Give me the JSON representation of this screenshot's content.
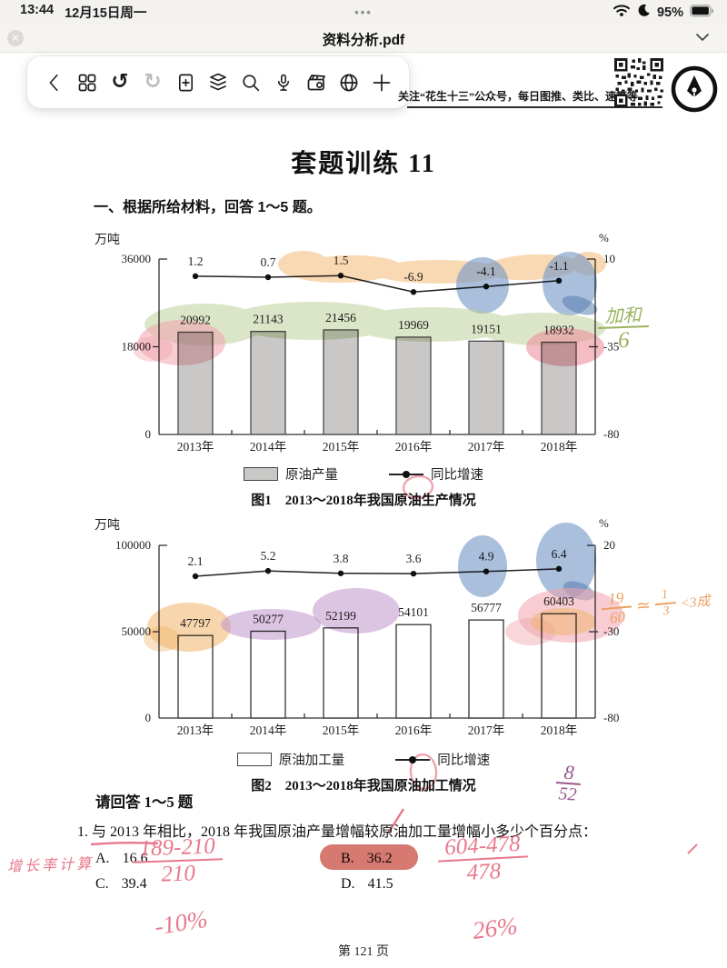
{
  "colors": {
    "highlight_orange": "#f2b46a",
    "highlight_green": "#b8cc92",
    "highlight_blue": "#6f94c4",
    "highlight_blue_dark": "#5076ab",
    "highlight_pink": "#f0a3ad",
    "highlight_pink_strong": "#ec8f9b",
    "highlight_purple": "#bf94cc",
    "answer_highlight": "#cf6157",
    "pen_pink": "#e8798c",
    "pen_orange": "#eda05f",
    "pen_green": "#9ab35e",
    "pen_purple": "#96588f"
  },
  "status_bar": {
    "time": "13:44",
    "date": "12月15日周一",
    "more": "•••",
    "battery_percent": "95%"
  },
  "title_bar": {
    "title": "资料分析.pdf"
  },
  "toolbar": {
    "promo": "关注“花生十三”公众号，每日图推、类比、速算等"
  },
  "document": {
    "heading": "套题训练 11",
    "intro": "一、根据所给材料，回答 1～5 题。",
    "ask": "请回答 1～5 题",
    "question": "1. 与 2013 年相比，2018 年我国原油产量增幅较原油加工量增幅小多少个百分点：",
    "options": [
      {
        "key": "A.",
        "value": "16.6"
      },
      {
        "key": "B.",
        "value": "36.2"
      },
      {
        "key": "C.",
        "value": "39.4"
      },
      {
        "key": "D.",
        "value": "41.5"
      }
    ],
    "answer_highlighted": "B",
    "footer": "第 121 页"
  },
  "chart_data": [
    {
      "type": "bar+line",
      "title": "图1　2013～2018年我国原油生产情况",
      "unit_left": "万吨",
      "unit_right": "%",
      "categories": [
        "2013年",
        "2014年",
        "2015年",
        "2016年",
        "2017年",
        "2018年"
      ],
      "series": [
        {
          "name": "原油产量",
          "type": "bar",
          "values": [
            20992,
            21143,
            21456,
            19969,
            19151,
            18932
          ]
        },
        {
          "name": "同比增速",
          "type": "line",
          "values": [
            1.2,
            0.7,
            1.5,
            -6.9,
            -4.1,
            -1.1
          ]
        }
      ],
      "left_axis": {
        "max": 36000,
        "min": 0,
        "ticks": [
          36000,
          18000,
          0
        ]
      },
      "right_axis": {
        "max": 10,
        "min": -80,
        "ticks": [
          10,
          -35,
          -80
        ]
      },
      "bar_fill": "#c9c8c6",
      "bar_stroke": "#4a4a4a",
      "legend_position": "bottom",
      "grid": false
    },
    {
      "type": "bar+line",
      "title": "图2　2013～2018年我国原油加工情况",
      "unit_left": "万吨",
      "unit_right": "%",
      "categories": [
        "2013年",
        "2014年",
        "2015年",
        "2016年",
        "2017年",
        "2018年"
      ],
      "series": [
        {
          "name": "原油加工量",
          "type": "bar",
          "values": [
            47797,
            50277,
            52199,
            54101,
            56777,
            60403
          ]
        },
        {
          "name": "同比增速",
          "type": "line",
          "values": [
            2.1,
            5.2,
            3.8,
            3.6,
            4.9,
            6.4
          ]
        }
      ],
      "left_axis": {
        "max": 100000,
        "min": 0,
        "ticks": [
          100000,
          50000,
          0
        ]
      },
      "right_axis": {
        "max": 20,
        "min": -80,
        "ticks": [
          20,
          -30,
          -80
        ]
      },
      "bar_fill": "#ffffff",
      "bar_stroke": "#333333",
      "legend_position": "bottom",
      "grid": false
    }
  ],
  "handwriting": {
    "sum_note": {
      "num": "加和",
      "den": "6"
    },
    "ratio_note": {
      "num": "19",
      "den": "60",
      "approx": "≃",
      "num2": "1",
      "den2": "3",
      "tail": "<3成"
    },
    "frac_note": {
      "num": "8",
      "den": "52"
    },
    "method_note": "增长率计算",
    "calc1": {
      "num": "189-210",
      "den": "210",
      "result": "-10%"
    },
    "calc2": {
      "num": "604-478",
      "den": "478",
      "result": "26%"
    }
  }
}
